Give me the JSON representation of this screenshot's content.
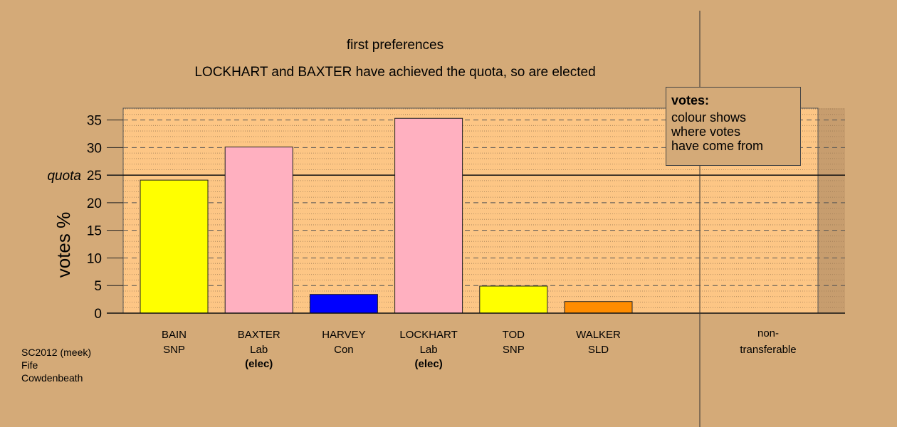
{
  "title": "first preferences",
  "subtitle": "LOCKHART and BAXTER have achieved the quota, so are elected",
  "legend": {
    "title": "votes:",
    "body": "colour shows\nwhere votes\nhave come from"
  },
  "footer": [
    "SC2012 (meek)",
    "Fife",
    "Cowdenbeath"
  ],
  "colors": {
    "background": "#d4aa78",
    "plot_fill": "#fdc685",
    "shade": "#c79d6e"
  },
  "chart_data": {
    "type": "bar",
    "title": "first preferences",
    "subtitle": "LOCKHART and BAXTER have achieved the quota, so are elected",
    "ylabel": "votes %",
    "ylim": [
      0,
      37
    ],
    "yticks": [
      0,
      5,
      10,
      15,
      20,
      25,
      30,
      35
    ],
    "quota": {
      "value": 25,
      "label": "quota"
    },
    "grid": true,
    "legend_position": "top-right",
    "categories": [
      {
        "name": "BAIN",
        "party": "SNP",
        "note": "",
        "value": 24.1,
        "color": "#ffff00"
      },
      {
        "name": "BAXTER",
        "party": "Lab",
        "note": "(elec)",
        "value": 30.1,
        "color": "#ffb0c0"
      },
      {
        "name": "HARVEY",
        "party": "Con",
        "note": "",
        "value": 3.4,
        "color": "#0000ff"
      },
      {
        "name": "LOCKHART",
        "party": "Lab",
        "note": "(elec)",
        "value": 35.3,
        "color": "#ffb0c0"
      },
      {
        "name": "TOD",
        "party": "SNP",
        "note": "",
        "value": 4.9,
        "color": "#ffff00"
      },
      {
        "name": "WALKER",
        "party": "SLD",
        "note": "",
        "value": 2.1,
        "color": "#ff8c00"
      }
    ],
    "nontransferable": {
      "label1": "non-",
      "label2": "transferable",
      "value": 0
    }
  }
}
